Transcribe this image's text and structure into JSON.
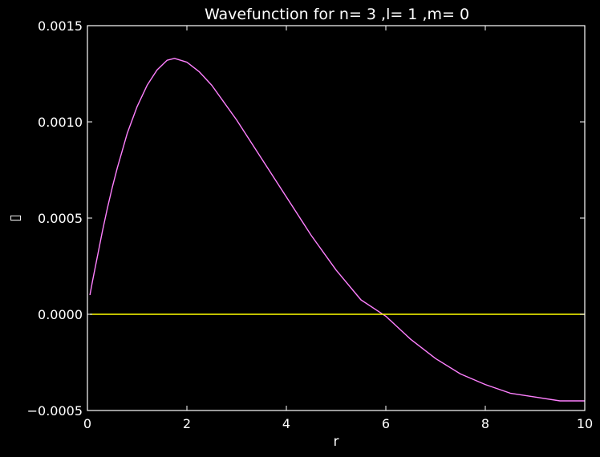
{
  "chart_data": {
    "type": "line",
    "title": "Wavefunction for n= 3 ,l= 1 ,m= 0",
    "xlabel": "r",
    "ylabel": "▯",
    "xlim": [
      0,
      10
    ],
    "ylim": [
      -0.0005,
      0.0015
    ],
    "x_ticks": [
      {
        "value": 0,
        "label": "0"
      },
      {
        "value": 2,
        "label": "2"
      },
      {
        "value": 4,
        "label": "4"
      },
      {
        "value": 6,
        "label": "6"
      },
      {
        "value": 8,
        "label": "8"
      },
      {
        "value": 10,
        "label": "10"
      }
    ],
    "y_ticks": [
      {
        "value": -0.0005,
        "label": "−0.0005"
      },
      {
        "value": 0,
        "label": "0.0000"
      },
      {
        "value": 0.0005,
        "label": "0.0005"
      },
      {
        "value": 0.001,
        "label": "0.0010"
      },
      {
        "value": 0.0015,
        "label": "0.0015"
      }
    ],
    "grid": false,
    "series": [
      {
        "color": "#ff80ff",
        "x": [
          0.05,
          0.1,
          0.2,
          0.3,
          0.4,
          0.5,
          0.6,
          0.8,
          1.0,
          1.2,
          1.4,
          1.6,
          1.75,
          2.0,
          2.25,
          2.5,
          3.0,
          3.5,
          4.0,
          4.5,
          5.0,
          5.5,
          6.0,
          6.5,
          7.0,
          7.5,
          8.0,
          8.5,
          9.0,
          9.5,
          10.0
        ],
        "y": [
          0.0001,
          0.00017,
          0.0003,
          0.00043,
          0.00055,
          0.00066,
          0.00076,
          0.00094,
          0.00108,
          0.00119,
          0.00127,
          0.00132,
          0.00133,
          0.00131,
          0.00126,
          0.00119,
          0.00101,
          0.00081,
          0.00061,
          0.00041,
          0.00023,
          7.5e-05,
          -1e-05,
          -0.00013,
          -0.00023,
          -0.00031,
          -0.000365,
          -0.00041,
          -0.00043,
          -0.00045,
          -0.00045
        ]
      },
      {
        "color": "#ffff00",
        "x": [
          0.05,
          10.0
        ],
        "y": [
          0,
          0
        ]
      }
    ],
    "colors": {
      "background": "#000000",
      "axes": "#ffffff"
    }
  }
}
